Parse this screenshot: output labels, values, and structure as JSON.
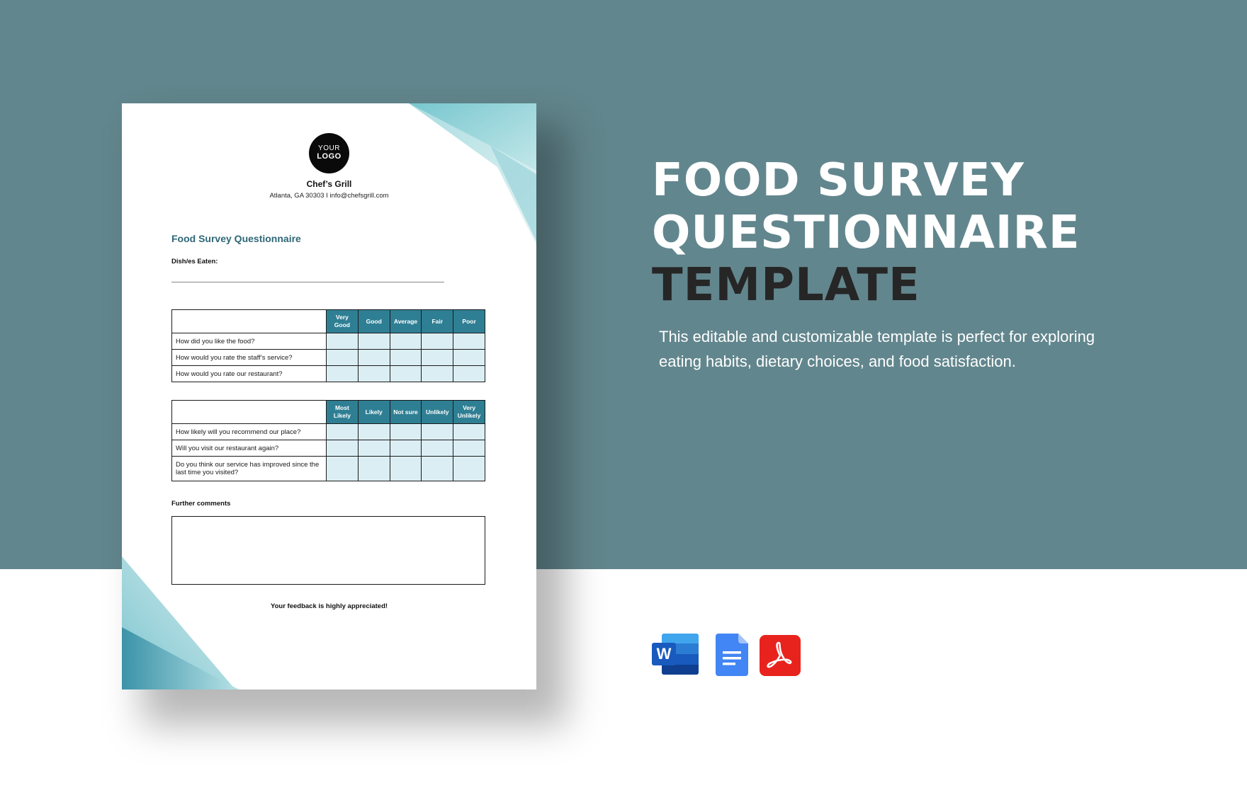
{
  "document": {
    "logo_line1": "YOUR",
    "logo_line2": "LOGO",
    "business_name": "Chef’s Grill",
    "business_address": "Atlanta, GA 30303 I info@chefsgrill.com",
    "title": "Food Survey Questionnaire",
    "dish_label": "Dish/es Eaten:",
    "table1": {
      "headers": [
        "Very Good",
        "Good",
        "Average",
        "Fair",
        "Poor"
      ],
      "rows": [
        "How did you like the food?",
        "How would you rate the staff’s service?",
        "How would you rate our restaurant?"
      ]
    },
    "table2": {
      "headers": [
        "Most Likely",
        "Likely",
        "Not sure",
        "Unlikely",
        "Very Unlikely"
      ],
      "rows": [
        "How likely will you recommend our place?",
        "Will you visit our restaurant again?",
        "Do you think our service has improved since the last time you visited?"
      ]
    },
    "comments_label": "Further comments",
    "footer_note": "Your feedback is highly appreciated!"
  },
  "headline": {
    "line1": "FOOD SURVEY",
    "line2": "QUESTIONNAIRE",
    "line3": "TEMPLATE"
  },
  "description": "This editable and customizable template is perfect for exploring eating habits, dietary choices, and food satisfaction.",
  "app_icons": [
    "word-icon",
    "google-docs-icon",
    "pdf-icon"
  ],
  "colors": {
    "background_top": "#62868d",
    "table_header": "#2f7f94",
    "table_cell": "#dbeef3",
    "title_teal": "#2f6777",
    "word_blue": "#185abd",
    "docs_blue": "#4285f4",
    "pdf_red": "#e8231d"
  }
}
